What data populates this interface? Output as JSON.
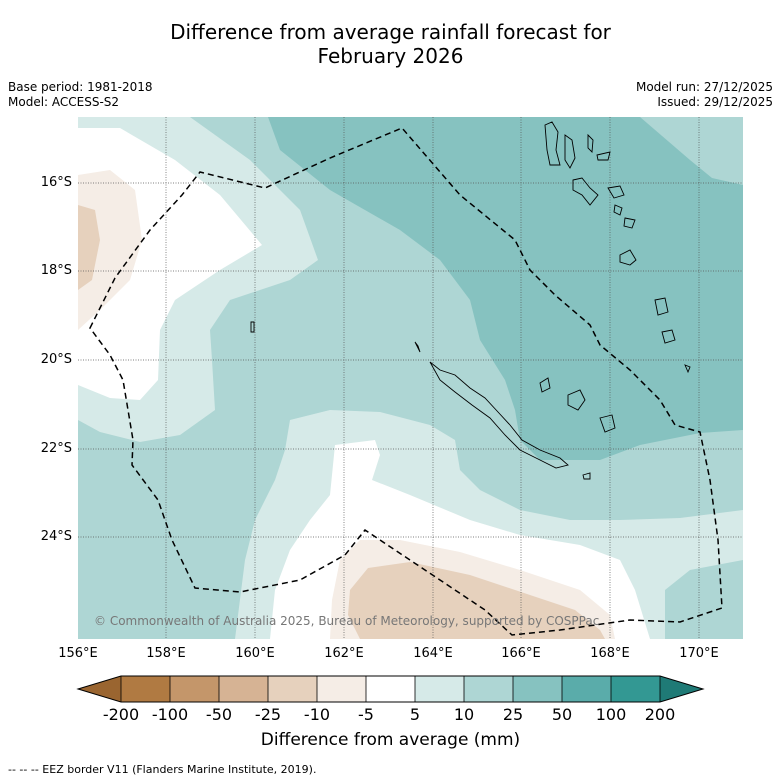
{
  "title_line1": "Difference from average rainfall forecast for",
  "title_line2": "February 2026",
  "base_period": "Base period: 1981-2018",
  "model": "Model: ACCESS-S2",
  "model_run": "Model run: 27/12/2025",
  "issued": "Issued: 29/12/2025",
  "copyright": "© Commonwealth of Australia 2025, Bureau of Meteorology, supported by COSPPac",
  "lat_labels": [
    "16°S",
    "18°S",
    "20°S",
    "22°S",
    "24°S"
  ],
  "lon_labels": [
    "156°E",
    "158°E",
    "160°E",
    "162°E",
    "164°E",
    "166°E",
    "168°E",
    "170°E"
  ],
  "colorbar": {
    "ticks": [
      "-200",
      "-100",
      "-50",
      "-25",
      "-10",
      "-5",
      "5",
      "10",
      "25",
      "50",
      "100",
      "200"
    ],
    "colors": [
      "#9a6530",
      "#b07a42",
      "#c4966a",
      "#d6b394",
      "#e6d1bd",
      "#f5ede6",
      "#ffffff",
      "#d6eae8",
      "#aed6d4",
      "#86c2c0",
      "#5aacaa",
      "#339893",
      "#1f7a76"
    ],
    "title": "Difference from average (mm)"
  },
  "legend_note": "--  --  -- EEZ border V11 (Flanders Marine Institute, 2019)."
}
